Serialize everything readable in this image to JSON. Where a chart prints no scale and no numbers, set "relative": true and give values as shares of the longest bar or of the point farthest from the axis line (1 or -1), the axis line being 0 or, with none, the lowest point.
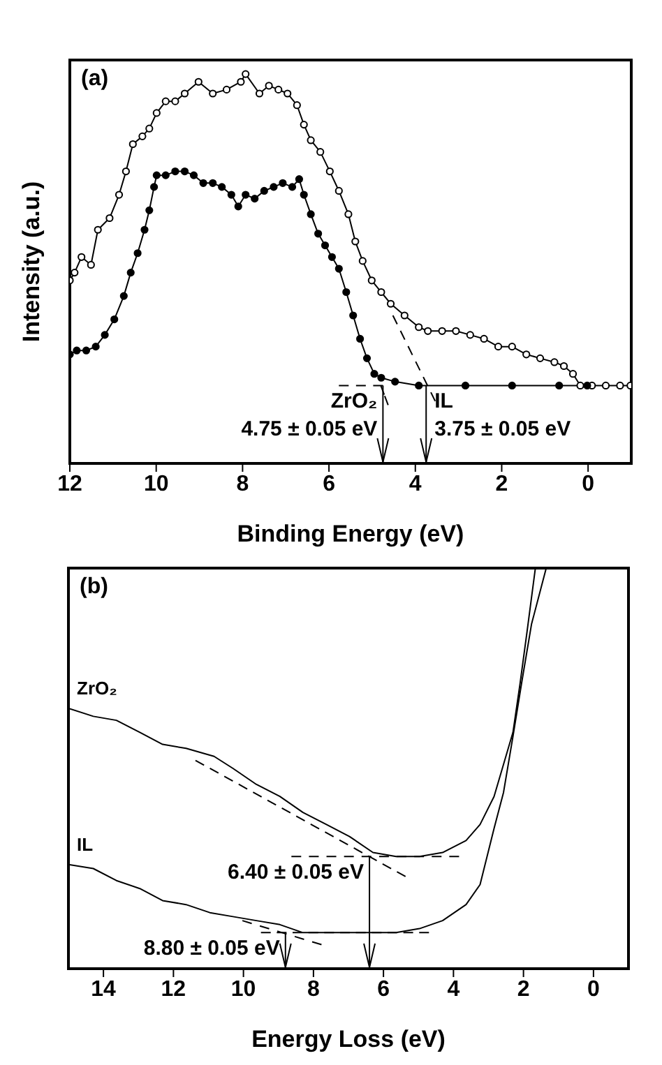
{
  "chart_data": [
    {
      "type": "line",
      "title": "(a)",
      "xlabel": "Binding Energy (eV)",
      "ylabel": "Intensity (a.u.)",
      "relative": true,
      "xlim": [
        12,
        -1
      ],
      "xticks": [
        12,
        10,
        8,
        6,
        4,
        2,
        0
      ],
      "series": [
        {
          "type": "line",
          "color": "#000000",
          "marker": "circle",
          "x": [
            12.0,
            11.89,
            11.73,
            11.51,
            11.35,
            11.08,
            10.86,
            10.7,
            10.54,
            10.32,
            10.16,
            9.99,
            9.78,
            9.56,
            9.34,
            9.02,
            8.69,
            8.37,
            8.04,
            7.93,
            7.61,
            7.39,
            7.17,
            6.96,
            6.74,
            6.58,
            6.42,
            6.2,
            5.98,
            5.77,
            5.55,
            5.39,
            5.22,
            5.01,
            4.79,
            4.57,
            4.25,
            3.92,
            3.71,
            3.38,
            3.06,
            2.73,
            2.41,
            2.08,
            1.76,
            1.43,
            1.11,
            0.78,
            0.56,
            0.35,
            0.18,
            -0.09,
            -0.41,
            -0.74,
            -0.98
          ],
          "values": [
            0.47,
            0.49,
            0.53,
            0.51,
            0.6,
            0.63,
            0.69,
            0.75,
            0.82,
            0.84,
            0.86,
            0.9,
            0.93,
            0.93,
            0.95,
            0.98,
            0.95,
            0.96,
            0.98,
            1.0,
            0.95,
            0.97,
            0.96,
            0.95,
            0.92,
            0.87,
            0.83,
            0.8,
            0.75,
            0.7,
            0.64,
            0.57,
            0.52,
            0.47,
            0.44,
            0.41,
            0.38,
            0.35,
            0.34,
            0.34,
            0.34,
            0.33,
            0.32,
            0.3,
            0.3,
            0.28,
            0.27,
            0.26,
            0.25,
            0.23,
            0.2,
            0.2,
            0.2,
            0.2,
            0.2
          ]
        },
        {
          "type": "line",
          "color": "#000000",
          "marker": "circle",
          "x": [
            12.0,
            11.84,
            11.62,
            11.4,
            11.19,
            10.97,
            10.75,
            10.59,
            10.43,
            10.27,
            10.16,
            10.05,
            9.99,
            9.78,
            9.56,
            9.34,
            9.13,
            8.91,
            8.69,
            8.48,
            8.26,
            8.1,
            7.93,
            7.72,
            7.5,
            7.28,
            7.07,
            6.85,
            6.69,
            6.58,
            6.42,
            6.25,
            6.09,
            5.93,
            5.77,
            5.6,
            5.44,
            5.28,
            5.12,
            4.95,
            4.79,
            4.47,
            3.92,
            2.84,
            1.76,
            0.67,
            0.02
          ],
          "values": [
            0.28,
            0.29,
            0.29,
            0.3,
            0.33,
            0.37,
            0.43,
            0.49,
            0.54,
            0.6,
            0.65,
            0.71,
            0.74,
            0.74,
            0.75,
            0.75,
            0.74,
            0.72,
            0.72,
            0.71,
            0.69,
            0.66,
            0.69,
            0.68,
            0.7,
            0.71,
            0.72,
            0.71,
            0.73,
            0.69,
            0.64,
            0.59,
            0.56,
            0.53,
            0.5,
            0.44,
            0.38,
            0.32,
            0.27,
            0.23,
            0.22,
            0.21,
            0.2,
            0.2,
            0.2,
            0.2,
            0.2
          ]
        },
        {
          "type": "line",
          "color": "#000000",
          "line_style": "dashed",
          "x": [
            5.77,
            4.75
          ],
          "values": [
            0.2,
            0.2
          ]
        },
        {
          "type": "line",
          "color": "#000000",
          "line_style": "dashed",
          "x": [
            4.8,
            4.63
          ],
          "values": [
            0.2,
            0.15
          ]
        },
        {
          "type": "line",
          "color": "#000000",
          "line_style": "dashed",
          "x": [
            4.52,
            3.54
          ],
          "values": [
            0.38,
            0.16
          ]
        }
      ],
      "annotations": [
        {
          "text": "ZrO₂",
          "x": 4.75,
          "y": 0.2
        },
        {
          "text": "4.75 ± 0.05 eV",
          "x": 4.75,
          "y": 0.2
        },
        {
          "text": "IL",
          "x": 3.75,
          "y": 0.2
        },
        {
          "text": "3.75 ± 0.05 eV",
          "x": 3.75,
          "y": 0.2
        }
      ]
    },
    {
      "type": "line",
      "title": "(b)",
      "xlabel": "Energy Loss (eV)",
      "relative": true,
      "xlim": [
        15,
        -1
      ],
      "xticks": [
        14,
        12,
        10,
        8,
        6,
        4,
        2,
        0
      ],
      "series": [
        {
          "type": "line",
          "name": "ZrO₂",
          "color": "#000000",
          "x": [
            15.0,
            14.29,
            13.63,
            12.96,
            12.31,
            11.64,
            10.84,
            10.3,
            9.63,
            8.96,
            8.3,
            7.63,
            6.97,
            6.3,
            5.64,
            4.97,
            4.31,
            3.64,
            3.24,
            2.84,
            2.57,
            2.3,
            2.1,
            1.9,
            1.66
          ],
          "values": [
            0.65,
            0.63,
            0.62,
            0.59,
            0.56,
            0.55,
            0.53,
            0.5,
            0.46,
            0.43,
            0.39,
            0.36,
            0.33,
            0.29,
            0.28,
            0.28,
            0.29,
            0.32,
            0.36,
            0.43,
            0.51,
            0.59,
            0.71,
            0.84,
            1.0
          ]
        },
        {
          "type": "line",
          "name": "IL",
          "color": "#000000",
          "x": [
            15.0,
            14.29,
            13.63,
            12.96,
            12.31,
            11.64,
            10.96,
            10.3,
            9.63,
            8.96,
            8.3,
            7.63,
            6.97,
            6.3,
            5.64,
            4.97,
            4.31,
            3.64,
            3.24,
            2.84,
            2.57,
            2.3,
            2.04,
            1.77,
            1.35
          ],
          "values": [
            0.26,
            0.25,
            0.22,
            0.2,
            0.17,
            0.16,
            0.14,
            0.13,
            0.12,
            0.11,
            0.09,
            0.09,
            0.09,
            0.09,
            0.09,
            0.1,
            0.12,
            0.16,
            0.21,
            0.35,
            0.44,
            0.58,
            0.72,
            0.86,
            1.0
          ]
        },
        {
          "type": "line",
          "color": "#000000",
          "line_style": "dashed",
          "x": [
            11.37,
            5.37
          ],
          "values": [
            0.52,
            0.23
          ]
        },
        {
          "type": "line",
          "color": "#000000",
          "line_style": "dashed",
          "x": [
            8.63,
            3.84
          ],
          "values": [
            0.28,
            0.28
          ]
        },
        {
          "type": "line",
          "color": "#000000",
          "line_style": "dashed",
          "x": [
            9.5,
            4.7
          ],
          "values": [
            0.09,
            0.09
          ]
        },
        {
          "type": "line",
          "color": "#000000",
          "line_style": "dashed",
          "x": [
            10.03,
            7.77
          ],
          "values": [
            0.12,
            0.06
          ]
        }
      ],
      "annotations": [
        {
          "text": "6.40 ± 0.05 eV",
          "x": 6.4,
          "y": 0.28
        },
        {
          "text": "8.80 ± 0.05 eV",
          "x": 8.8,
          "y": 0.09
        }
      ]
    }
  ]
}
